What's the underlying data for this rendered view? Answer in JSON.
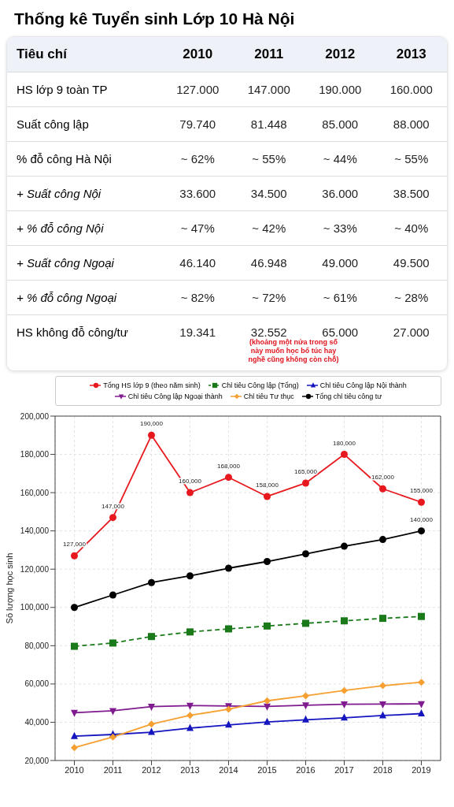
{
  "chart_data": [
    {
      "type": "heatmap",
      "title": "Thống kê Tuyển sinh Lớp 10 Hà Nội",
      "ylabel": "Tiêu chí",
      "categories": [
        "2010",
        "2011",
        "2012",
        "2013"
      ],
      "y_categories": [
        "HS lớp 9 toàn TP",
        "Suất công lập",
        "% đỗ công Hà Nội",
        "+ Suất công Nội",
        "+ % đỗ công Nội",
        "+ Suất công Ngoại",
        "+ % đỗ công Ngoại",
        "HS không đỗ công/tư"
      ],
      "cells": [
        [
          null,
          null,
          null,
          null
        ],
        [
          null,
          null,
          null,
          null
        ],
        [
          null,
          null,
          null,
          null
        ],
        [
          null,
          null,
          null,
          null
        ],
        [
          null,
          null,
          null,
          null
        ],
        [
          null,
          null,
          null,
          null
        ],
        [
          null,
          null,
          null,
          null
        ],
        [
          null,
          null,
          null,
          null
        ]
      ],
      "cell_labels": [
        [
          "127.000",
          "147.000",
          "190.000",
          "160.000"
        ],
        [
          "79.740",
          "81.448",
          "85.000",
          "88.000"
        ],
        [
          "~ 62%",
          "~ 55%",
          "~ 44%",
          "~ 55%"
        ],
        [
          "33.600",
          "34.500",
          "36.000",
          "38.500"
        ],
        [
          "~ 47%",
          "~ 42%",
          "~ 33%",
          "~ 40%"
        ],
        [
          "46.140",
          "46.948",
          "49.000",
          "49.500"
        ],
        [
          "~ 82%",
          "~ 72%",
          "~ 61%",
          "~ 28%"
        ],
        [
          "19.341",
          "32.552",
          "65.000",
          "27.000"
        ]
      ],
      "annotations": [
        "(khoảng một nửa trong số này muốn học bổ túc hay nghề cũng không còn chỗ)"
      ]
    },
    {
      "type": "line",
      "ylabel": "Số lượng học sinh",
      "x": [
        2010,
        2011,
        2012,
        2013,
        2014,
        2015,
        2016,
        2017,
        2018,
        2019
      ],
      "xlim": [
        2009.5,
        2019.5
      ],
      "xticks": [
        2010,
        2011,
        2012,
        2013,
        2014,
        2015,
        2016,
        2017,
        2018,
        2019
      ],
      "ylim": [
        20000,
        200000
      ],
      "yticks": [
        {
          "value": 20000,
          "label": "20,000"
        },
        {
          "value": 40000,
          "label": "40,000"
        },
        {
          "value": 60000,
          "label": "60,000"
        },
        {
          "value": 80000,
          "label": "80,000"
        },
        {
          "value": 100000,
          "label": "100,000"
        },
        {
          "value": 120000,
          "label": "120,000"
        },
        {
          "value": 140000,
          "label": "140,000"
        },
        {
          "value": 160000,
          "label": "160,000"
        },
        {
          "value": 180000,
          "label": "180,000"
        },
        {
          "value": 200000,
          "label": "200,000"
        }
      ],
      "grid": true,
      "legend": "top",
      "series": [
        {
          "name": "Tổng HS lớp 9 (theo năm sinh)",
          "color": "#e8191e",
          "marker": "circle",
          "line_style": "solid",
          "values": [
            127000,
            147000,
            190000,
            160000,
            168000,
            158000,
            165000,
            180000,
            162000,
            155000
          ],
          "value_labels": [
            "127,000",
            "147,000",
            "190,000",
            "160,000",
            "168,000",
            "158,000",
            "165,000",
            "180,000",
            "162,000",
            "155,000"
          ]
        },
        {
          "name": "Chỉ tiêu Công lập (Tổng)",
          "color": "#1a7a1a",
          "marker": "square",
          "line_style": "dashed",
          "values": [
            79700,
            81400,
            84800,
            87200,
            88800,
            90300,
            91700,
            93000,
            94300,
            95300
          ]
        },
        {
          "name": "Chỉ tiêu Công lập Nội thành",
          "color": "#1515c0",
          "marker": "triangle",
          "line_style": "solid",
          "values": [
            32700,
            33600,
            34800,
            36900,
            38600,
            40100,
            41300,
            42300,
            43500,
            44500
          ]
        },
        {
          "name": "Chỉ tiêu Công lập Ngoại thành",
          "color": "#7f1a8f",
          "marker": "triangle-down",
          "line_style": "solid",
          "values": [
            45000,
            46000,
            48200,
            48700,
            48500,
            48300,
            48900,
            49400,
            49500,
            49600
          ]
        },
        {
          "name": "Chỉ tiêu Tư thục",
          "color": "#f5a030",
          "marker": "diamond",
          "line_style": "solid",
          "values": [
            26700,
            32300,
            39000,
            43600,
            46800,
            51200,
            53800,
            56600,
            59100,
            60900
          ]
        },
        {
          "name": "Tổng chỉ tiêu công tư",
          "color": "#000000",
          "marker": "circle",
          "line_style": "solid",
          "values": [
            100000,
            106500,
            113000,
            116500,
            120500,
            124000,
            128000,
            132000,
            135500,
            140000
          ],
          "value_labels": [
            null,
            null,
            null,
            null,
            null,
            null,
            null,
            null,
            null,
            "140,000"
          ]
        }
      ]
    }
  ]
}
